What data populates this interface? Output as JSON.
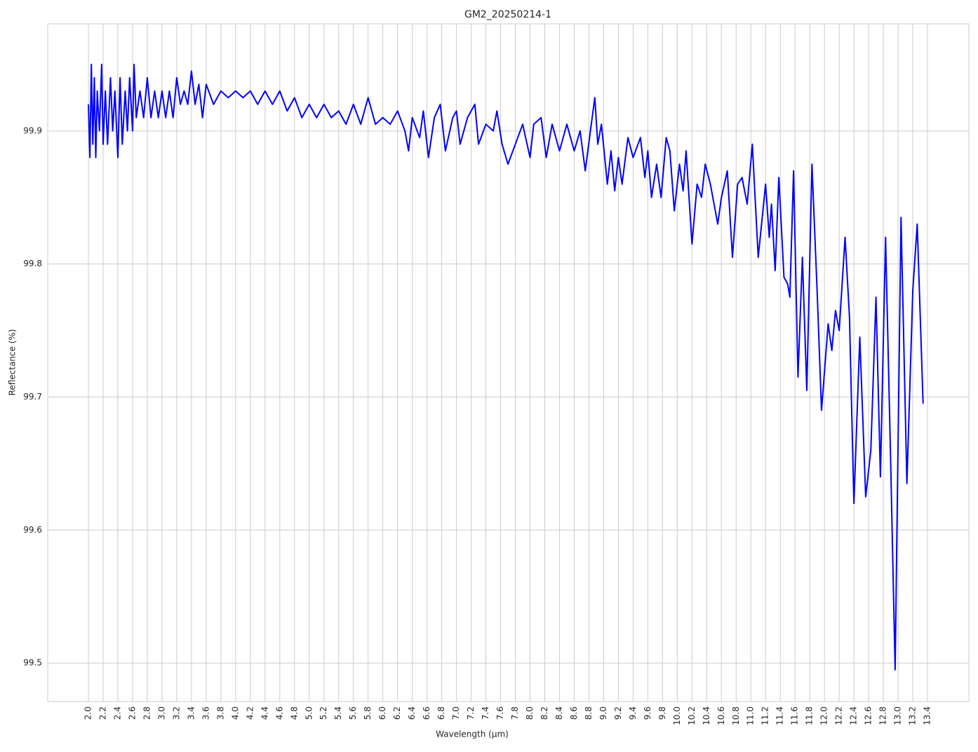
{
  "chart_data": {
    "type": "line",
    "title": "GM2_20250214-1",
    "x_label": "Wavelength (µm)",
    "y_label": "Reflectance (%)",
    "x": [
      2.0,
      2.02,
      2.04,
      2.06,
      2.08,
      2.1,
      2.12,
      2.15,
      2.18,
      2.2,
      2.23,
      2.26,
      2.3,
      2.33,
      2.36,
      2.4,
      2.43,
      2.46,
      2.5,
      2.53,
      2.56,
      2.6,
      2.62,
      2.65,
      2.7,
      2.75,
      2.8,
      2.85,
      2.9,
      2.95,
      3.0,
      3.05,
      3.1,
      3.15,
      3.2,
      3.25,
      3.3,
      3.35,
      3.4,
      3.45,
      3.5,
      3.55,
      3.6,
      3.7,
      3.8,
      3.9,
      4.0,
      4.1,
      4.2,
      4.3,
      4.4,
      4.5,
      4.6,
      4.7,
      4.8,
      4.9,
      5.0,
      5.1,
      5.2,
      5.3,
      5.4,
      5.5,
      5.6,
      5.7,
      5.8,
      5.9,
      6.0,
      6.1,
      6.2,
      6.3,
      6.35,
      6.4,
      6.5,
      6.55,
      6.62,
      6.7,
      6.78,
      6.85,
      6.95,
      7.0,
      7.05,
      7.15,
      7.25,
      7.3,
      7.4,
      7.5,
      7.55,
      7.62,
      7.7,
      7.8,
      7.9,
      8.0,
      8.05,
      8.15,
      8.22,
      8.3,
      8.4,
      8.5,
      8.6,
      8.68,
      8.75,
      8.82,
      8.88,
      8.92,
      8.97,
      9.05,
      9.1,
      9.15,
      9.2,
      9.25,
      9.33,
      9.4,
      9.5,
      9.56,
      9.6,
      9.65,
      9.72,
      9.78,
      9.85,
      9.9,
      9.96,
      10.03,
      10.08,
      10.12,
      10.2,
      10.27,
      10.33,
      10.38,
      10.45,
      10.55,
      10.6,
      10.68,
      10.75,
      10.82,
      10.88,
      10.95,
      11.02,
      11.1,
      11.2,
      11.25,
      11.28,
      11.33,
      11.38,
      11.45,
      11.5,
      11.53,
      11.58,
      11.64,
      11.7,
      11.76,
      11.83,
      11.9,
      11.96,
      12.05,
      12.1,
      12.15,
      12.2,
      12.28,
      12.34,
      12.4,
      12.48,
      12.56,
      12.63,
      12.7,
      12.76,
      12.83,
      12.9,
      12.96,
      13.04,
      13.12,
      13.2,
      13.26,
      13.34
    ],
    "values": [
      99.92,
      99.88,
      99.95,
      99.89,
      99.94,
      99.88,
      99.93,
      99.9,
      99.95,
      99.89,
      99.93,
      99.89,
      99.94,
      99.9,
      99.93,
      99.88,
      99.94,
      99.89,
      99.93,
      99.9,
      99.94,
      99.9,
      99.95,
      99.91,
      99.93,
      99.91,
      99.94,
      99.91,
      99.93,
      99.91,
      99.93,
      99.91,
      99.93,
      99.91,
      99.94,
      99.92,
      99.93,
      99.92,
      99.945,
      99.92,
      99.935,
      99.91,
      99.935,
      99.92,
      99.93,
      99.925,
      99.93,
      99.925,
      99.93,
      99.92,
      99.93,
      99.92,
      99.93,
      99.915,
      99.925,
      99.91,
      99.92,
      99.91,
      99.92,
      99.91,
      99.915,
      99.905,
      99.92,
      99.905,
      99.925,
      99.905,
      99.91,
      99.905,
      99.915,
      99.9,
      99.885,
      99.91,
      99.895,
      99.915,
      99.88,
      99.91,
      99.92,
      99.885,
      99.91,
      99.915,
      99.89,
      99.91,
      99.92,
      99.89,
      99.905,
      99.9,
      99.915,
      99.89,
      99.875,
      99.89,
      99.905,
      99.88,
      99.905,
      99.91,
      99.88,
      99.905,
      99.885,
      99.905,
      99.885,
      99.9,
      99.87,
      99.9,
      99.925,
      99.89,
      99.905,
      99.86,
      99.885,
      99.855,
      99.88,
      99.86,
      99.895,
      99.88,
      99.895,
      99.865,
      99.885,
      99.85,
      99.875,
      99.85,
      99.895,
      99.885,
      99.84,
      99.875,
      99.855,
      99.885,
      99.815,
      99.86,
      99.85,
      99.875,
      99.86,
      99.83,
      99.85,
      99.87,
      99.805,
      99.86,
      99.865,
      99.845,
      99.89,
      99.805,
      99.86,
      99.82,
      99.845,
      99.795,
      99.865,
      99.79,
      99.785,
      99.775,
      99.87,
      99.715,
      99.805,
      99.705,
      99.875,
      99.78,
      99.69,
      99.755,
      99.735,
      99.765,
      99.75,
      99.82,
      99.76,
      99.62,
      99.745,
      99.625,
      99.66,
      99.775,
      99.64,
      99.82,
      99.65,
      99.495,
      99.835,
      99.635,
      99.78,
      99.83,
      99.695
    ],
    "color": "#0000ff",
    "xlim": [
      1.447,
      13.962
    ],
    "ylim": [
      99.4711,
      99.9805
    ],
    "xticks": [
      {
        "value": 2.0,
        "label": "2.0"
      },
      2.2,
      2.4,
      2.6,
      2.8,
      {
        "value": 3.0,
        "label": "3.0"
      },
      3.2,
      3.4,
      3.6,
      3.8,
      {
        "value": 4.0,
        "label": "4.0"
      },
      4.2,
      4.4,
      4.6,
      4.8,
      {
        "value": 5.0,
        "label": "5.0"
      },
      5.2,
      5.4,
      5.6,
      5.8,
      {
        "value": 6.0,
        "label": "6.0"
      },
      6.2,
      6.4,
      6.6,
      6.8,
      {
        "value": 7.0,
        "label": "7.0"
      },
      7.2,
      7.4,
      7.6,
      7.8,
      {
        "value": 8.0,
        "label": "8.0"
      },
      8.2,
      8.4,
      8.6,
      8.8,
      {
        "value": 9.0,
        "label": "9.0"
      },
      9.2,
      9.4,
      9.6,
      9.8,
      {
        "value": 10.0,
        "label": "10.0"
      },
      10.2,
      10.4,
      10.6,
      10.8,
      {
        "value": 11.0,
        "label": "11.0"
      },
      11.2,
      11.4,
      11.6,
      11.8,
      {
        "value": 12.0,
        "label": "12.0"
      },
      12.2,
      12.4,
      12.6,
      12.8,
      {
        "value": 13.0,
        "label": "13.0"
      },
      13.2,
      13.4
    ],
    "yticks": [
      99.5,
      99.6,
      99.7,
      99.8,
      99.9
    ],
    "grid": true
  }
}
